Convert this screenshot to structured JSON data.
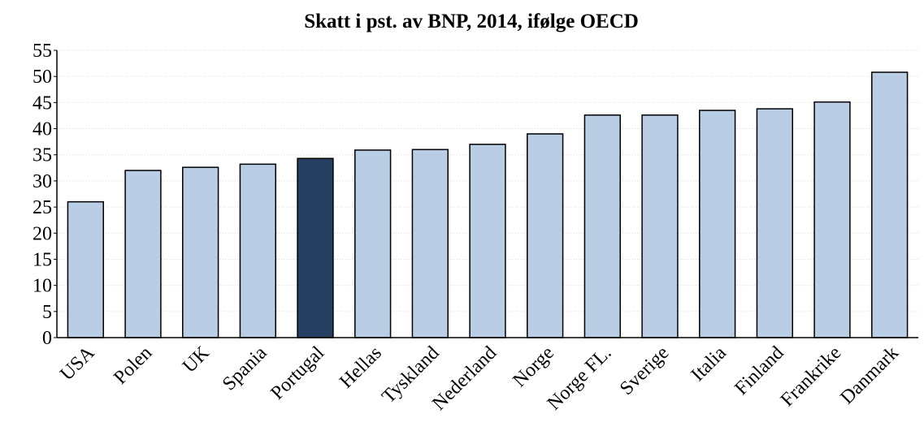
{
  "chart_data": {
    "type": "bar",
    "title": "Skatt i pst. av BNP, 2014, ifølge OECD",
    "categories": [
      "USA",
      "Polen",
      "UK",
      "Spania",
      "Portugal",
      "Hellas",
      "Tyskland",
      "Nederland",
      "Norge",
      "Norge FL.",
      "Sverige",
      "Italia",
      "Finland",
      "Frankrike",
      "Danmark"
    ],
    "values": [
      26.0,
      32.0,
      32.6,
      33.2,
      34.3,
      35.9,
      36.0,
      37.0,
      39.0,
      42.6,
      42.6,
      43.5,
      43.8,
      45.1,
      50.8
    ],
    "colors": [
      "#b9cde5",
      "#b9cde5",
      "#b9cde5",
      "#b9cde5",
      "#243f60",
      "#b9cde5",
      "#b9cde5",
      "#b9cde5",
      "#b9cde5",
      "#b9cde5",
      "#b9cde5",
      "#b9cde5",
      "#b9cde5",
      "#b9cde5",
      "#b9cde5"
    ],
    "ylim": [
      0,
      55
    ],
    "yticks": [
      0,
      5,
      10,
      15,
      20,
      25,
      30,
      35,
      40,
      45,
      50,
      55
    ],
    "grid": true
  }
}
